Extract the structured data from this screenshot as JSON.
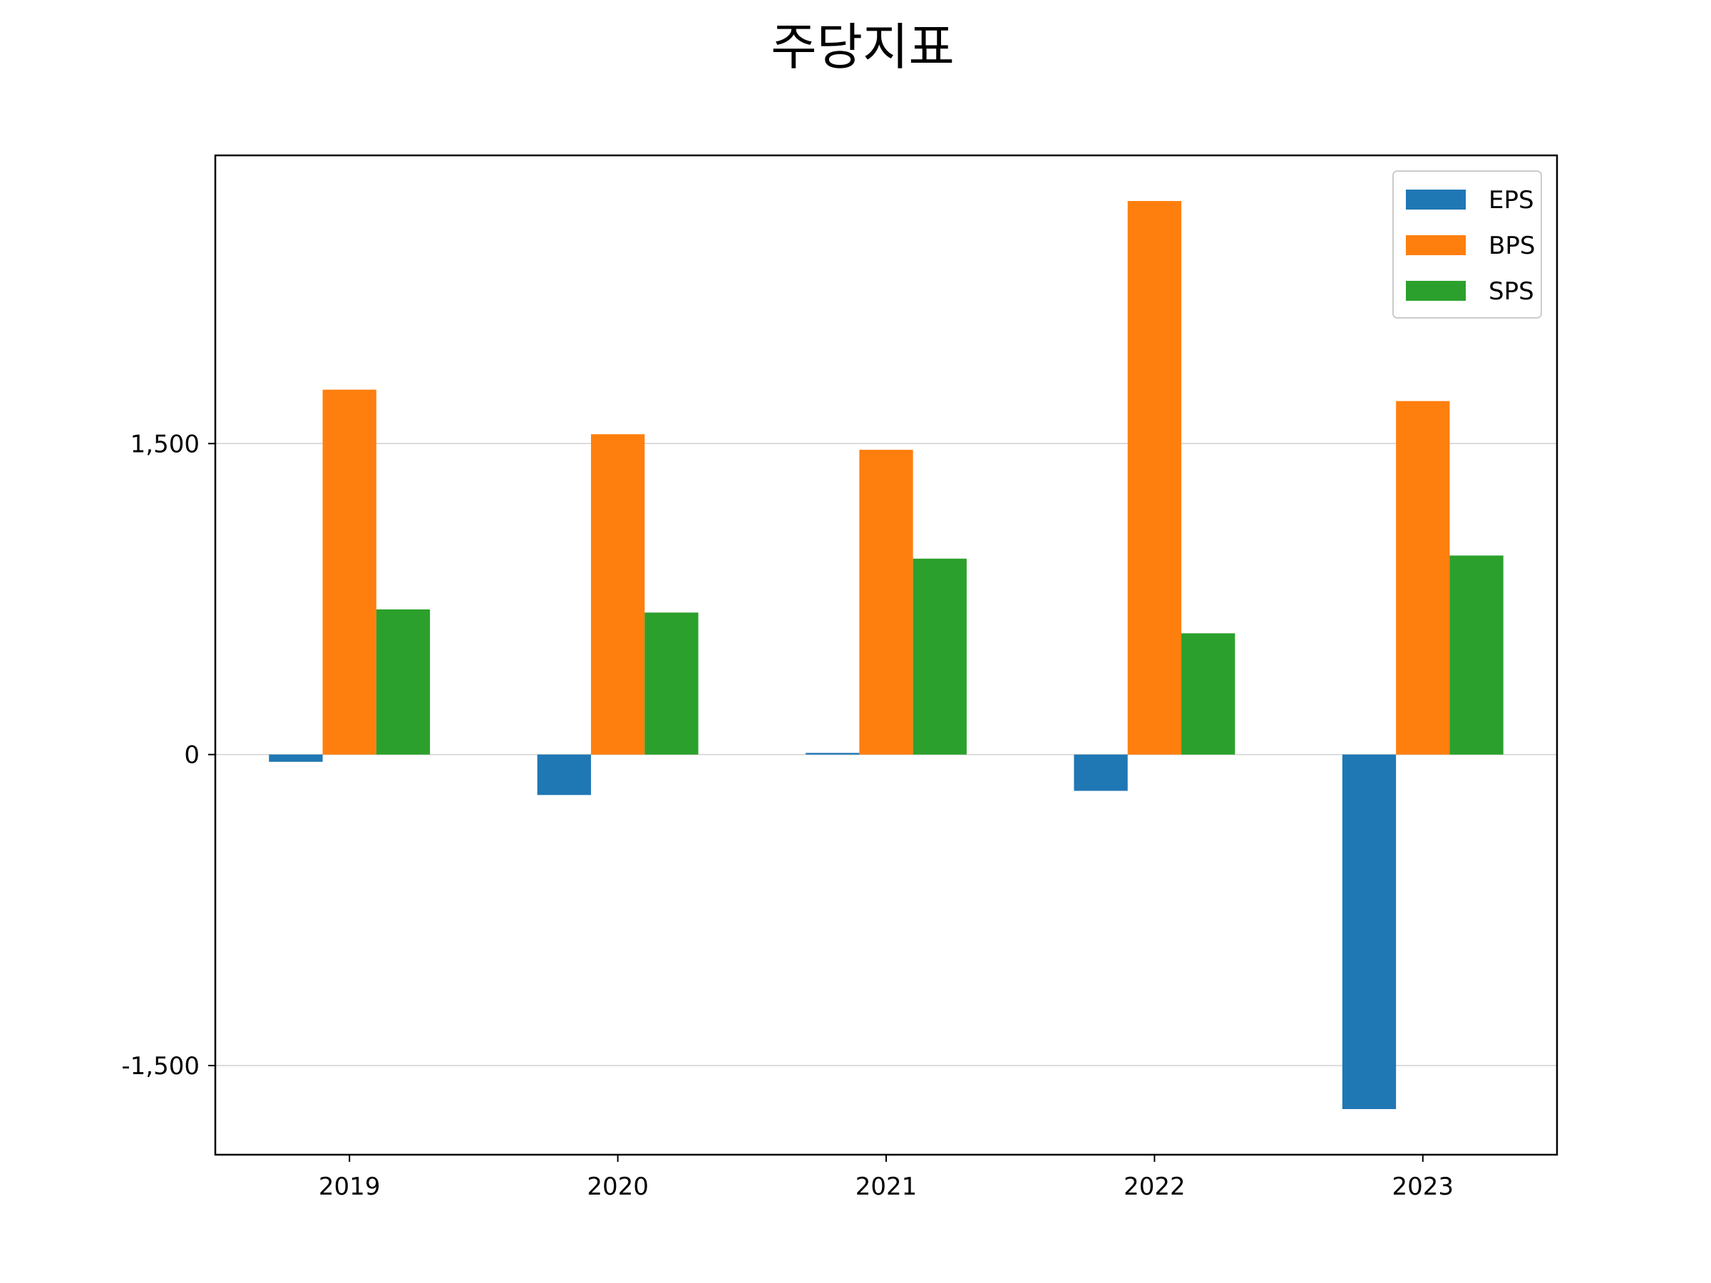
{
  "chart_data": {
    "type": "bar",
    "title": "주당지표",
    "xlabel": "",
    "ylabel": "",
    "categories": [
      "2019",
      "2020",
      "2021",
      "2022",
      "2023"
    ],
    "series": [
      {
        "name": "EPS",
        "color": "#1f77b4",
        "values": [
          -35,
          -195,
          8,
          -175,
          -1710
        ]
      },
      {
        "name": "BPS",
        "color": "#ff7f0e",
        "values": [
          1760,
          1545,
          1470,
          2670,
          1705
        ]
      },
      {
        "name": "SPS",
        "color": "#2ca02c",
        "values": [
          700,
          685,
          945,
          585,
          960
        ]
      }
    ],
    "yticks": [
      -1500,
      0,
      1500
    ],
    "ytick_labels": [
      "-1,500",
      "0",
      "1,500"
    ],
    "ylim": [
      -1930,
      2890
    ],
    "grid": "y",
    "legend": "top-right"
  }
}
